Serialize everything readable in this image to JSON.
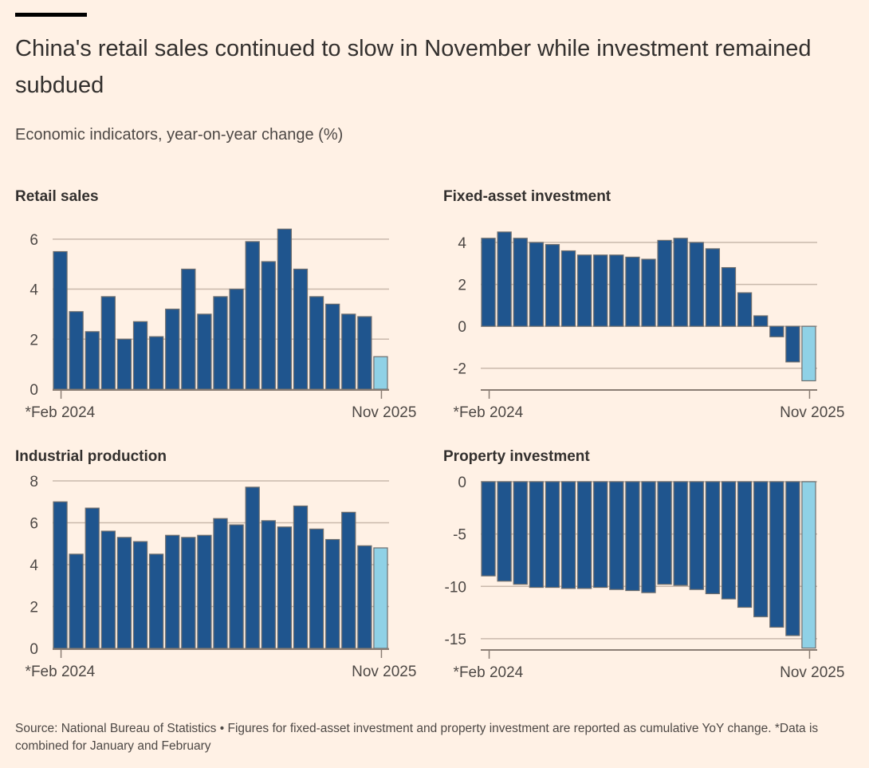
{
  "header": {
    "title": "China's retail sales continued to slow in November while investment remained subdued",
    "subtitle": "Economic indicators, year-on-year change (%)"
  },
  "colors": {
    "bar": "#1F558E",
    "highlight_bar": "#8FD1E6",
    "bar_stroke": "#6e6e6e",
    "grid": "#C9B9AC",
    "axis": "#8a7d74",
    "background": "#FFF1E5"
  },
  "footer": {
    "note": "Source: National Bureau of Statistics • Figures for fixed-asset investment and property investment are reported as cumulative YoY change. *Data is combined for January and February"
  },
  "chart_data": [
    {
      "type": "bar",
      "title": "Retail sales",
      "xlabel": "",
      "ylabel": "",
      "x_start_label": "*Feb 2024",
      "x_end_label": "Nov 2025",
      "ylim": [
        0,
        6.6
      ],
      "yticks": [
        0,
        2,
        4,
        6
      ],
      "ytick_labels": [
        "0",
        "2",
        "4",
        "6"
      ],
      "grid": true,
      "highlight_last": true,
      "values": [
        5.5,
        3.1,
        2.3,
        3.7,
        2.0,
        2.7,
        2.1,
        3.2,
        4.8,
        3.0,
        3.7,
        4.0,
        5.9,
        5.1,
        6.4,
        4.8,
        3.7,
        3.4,
        3.0,
        2.9,
        1.3
      ]
    },
    {
      "type": "bar",
      "title": "Fixed-asset investment",
      "xlabel": "",
      "ylabel": "",
      "x_start_label": "*Feb 2024",
      "x_end_label": "Nov 2025",
      "ylim": [
        -3,
        4.8
      ],
      "yticks": [
        -2,
        0,
        2,
        4
      ],
      "ytick_labels": [
        "-2",
        "0",
        "2",
        "4"
      ],
      "grid": true,
      "highlight_last": true,
      "values": [
        4.2,
        4.5,
        4.2,
        4.0,
        3.9,
        3.6,
        3.4,
        3.4,
        3.4,
        3.3,
        3.2,
        4.1,
        4.2,
        4.0,
        3.7,
        2.8,
        1.6,
        0.5,
        -0.5,
        -1.7,
        -2.6
      ]
    },
    {
      "type": "bar",
      "title": "Industrial production",
      "xlabel": "",
      "ylabel": "",
      "x_start_label": "*Feb 2024",
      "x_end_label": "Nov 2025",
      "ylim": [
        0,
        8
      ],
      "yticks": [
        0,
        2,
        4,
        6,
        8
      ],
      "ytick_labels": [
        "0",
        "2",
        "4",
        "6",
        "8"
      ],
      "grid": true,
      "highlight_last": true,
      "values": [
        7.0,
        4.5,
        6.7,
        5.6,
        5.3,
        5.1,
        4.5,
        5.4,
        5.3,
        5.4,
        6.2,
        5.9,
        7.7,
        6.1,
        5.8,
        6.8,
        5.7,
        5.2,
        6.5,
        4.9,
        4.8
      ]
    },
    {
      "type": "bar",
      "title": "Property investment",
      "xlabel": "",
      "ylabel": "",
      "x_start_label": "*Feb 2024",
      "x_end_label": "Nov 2025",
      "ylim": [
        -16,
        0
      ],
      "yticks": [
        -15,
        -10,
        -5,
        0
      ],
      "ytick_labels": [
        "-15",
        "-10",
        "-5",
        "0"
      ],
      "grid": true,
      "highlight_last": true,
      "values": [
        -9.0,
        -9.5,
        -9.8,
        -10.1,
        -10.1,
        -10.2,
        -10.2,
        -10.1,
        -10.3,
        -10.4,
        -10.6,
        -9.8,
        -9.9,
        -10.3,
        -10.7,
        -11.2,
        -12.0,
        -12.9,
        -13.9,
        -14.7,
        -15.9
      ]
    }
  ]
}
